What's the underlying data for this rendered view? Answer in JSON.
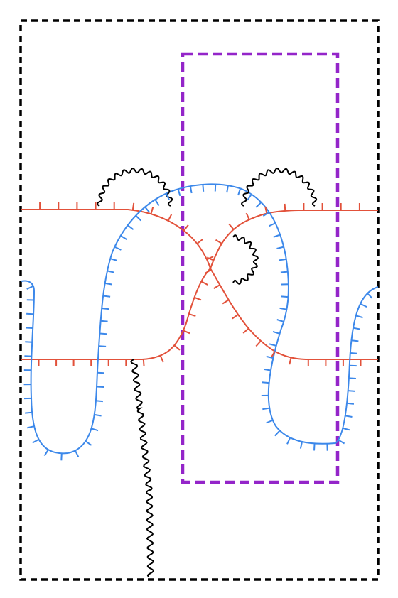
{
  "colors": {
    "background": "#ffffff",
    "outer_frame": "#000000",
    "inner_frame": "#9425c9",
    "red_curve": "#e2513a",
    "blue_curve": "#3c88ea",
    "black_curve": "#000000"
  },
  "legend": []
}
